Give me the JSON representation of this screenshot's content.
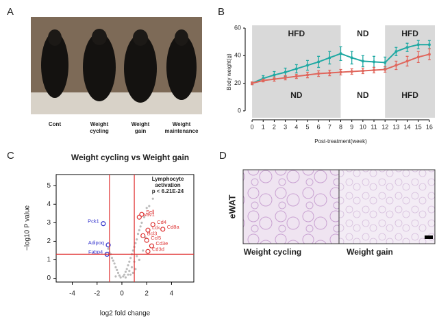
{
  "panels": [
    "A",
    "B",
    "C",
    "D"
  ],
  "photo": {
    "labels": [
      [
        "Cont"
      ],
      [
        "Weight",
        "cycling"
      ],
      [
        "Weight",
        "gain"
      ],
      [
        "Weight",
        "maintenance"
      ]
    ]
  },
  "histology": {
    "tissue": "eWAT",
    "labels": [
      "Weight cycling",
      "Weight gain"
    ]
  },
  "chart_data": [
    {
      "type": "line",
      "ylabel": "Body weight(g)",
      "xlabel": "Post-treatment(week)",
      "x": [
        0,
        1,
        2,
        3,
        4,
        5,
        6,
        7,
        8,
        9,
        10,
        11,
        12,
        13,
        14,
        15,
        16
      ],
      "xlim": [
        -0.5,
        16.5
      ],
      "xticks": [
        0,
        1,
        2,
        3,
        4,
        5,
        6,
        7,
        8,
        9,
        10,
        11,
        12,
        13,
        14,
        15,
        16
      ],
      "ylim": [
        -5,
        62
      ],
      "yticks": [
        0,
        20,
        40,
        60
      ],
      "phases": [
        {
          "start": 0,
          "end": 8,
          "top": "HFD",
          "bottom": "ND",
          "shaded": true
        },
        {
          "start": 8,
          "end": 12,
          "top": "ND",
          "bottom": "ND",
          "shaded": false
        },
        {
          "start": 12,
          "end": 16.5,
          "top": "HFD",
          "bottom": "HFD",
          "shaded": true
        }
      ],
      "series": [
        {
          "color": "#1fa9a3",
          "values": [
            20,
            23.5,
            26,
            28,
            30.5,
            33,
            35.5,
            38.5,
            41.5,
            38.5,
            36,
            35.5,
            35,
            43,
            46,
            48,
            48
          ],
          "errors": [
            1,
            2,
            2.5,
            3,
            3,
            3.5,
            4,
            4.5,
            5,
            4.5,
            4,
            4,
            4,
            3,
            3,
            3,
            3
          ]
        },
        {
          "color": "#e0665c",
          "values": [
            20,
            22,
            23,
            24,
            25,
            26,
            27,
            27.5,
            28,
            28.5,
            29,
            29.5,
            30,
            33,
            36,
            39,
            41
          ],
          "errors": [
            1,
            1,
            1.5,
            1.5,
            1.5,
            2,
            2,
            2,
            2,
            2,
            2,
            2,
            2,
            3,
            3.5,
            4,
            4
          ]
        }
      ]
    },
    {
      "type": "scatter",
      "title": "Weight cycling vs Weight gain",
      "xlabel": "log2 fold change",
      "ylabel": "−log10 P value",
      "xlim": [
        -5.3,
        5.8
      ],
      "xticks": [
        -4,
        -2,
        0,
        2,
        4
      ],
      "ylim": [
        -0.2,
        5.6
      ],
      "yticks": [
        0,
        1,
        2,
        3,
        4,
        5
      ],
      "thresholds": {
        "x": [
          -1,
          1
        ],
        "y": 1.3
      },
      "threshold_color": "#e03030",
      "annotation": [
        "Lymphocyte",
        "activation",
        "p < 6.21E-24"
      ],
      "series": [
        {
          "color": "#bbbbbb",
          "x": [
            -0.1,
            0.1,
            0.2,
            -0.2,
            0.3,
            -0.3,
            0.4,
            -0.4,
            0.5,
            -0.5,
            0.6,
            -0.6,
            0.7,
            -0.7,
            0.8,
            -0.8,
            0.9,
            1.0,
            1.1,
            1.2,
            1.3,
            1.4,
            1.5,
            1.6,
            1.8,
            2.0,
            2.2,
            2.5,
            -0.9,
            -1.0,
            -1.1,
            -1.3,
            0.5,
            0.6,
            0.8,
            1.0,
            1.2,
            0.9,
            1.1,
            1.4,
            1.7,
            -0.5,
            0.3,
            0.7,
            1.9
          ],
          "y": [
            0.05,
            0.1,
            0.2,
            0.15,
            0.35,
            0.3,
            0.5,
            0.45,
            0.7,
            0.6,
            0.9,
            0.8,
            1.1,
            0.95,
            1.3,
            1.1,
            1.5,
            1.7,
            1.9,
            2.1,
            2.4,
            2.6,
            2.8,
            3.0,
            3.3,
            3.8,
            3.9,
            4.3,
            1.3,
            1.4,
            1.6,
            1.3,
            0.2,
            0.4,
            0.6,
            0.9,
            1.2,
            0.3,
            0.5,
            1.0,
            1.5,
            0.1,
            0.05,
            0.2,
            2.2
          ]
        },
        {
          "color": "#3333cc",
          "labels": [
            "Pck1",
            "Adipoq",
            "Fabp4"
          ],
          "x": [
            -1.5,
            -1.1,
            -1.2
          ],
          "y": [
            2.95,
            1.8,
            1.3
          ]
        },
        {
          "color": "#dd3333",
          "labels": [
            "Sell",
            "Vav1",
            "Cd4",
            "Cd8a",
            "Lck",
            "Bcl3",
            "Ccl5",
            "Cd3e",
            "Cd3d"
          ],
          "x": [
            1.6,
            1.4,
            2.5,
            3.3,
            2.1,
            1.7,
            2.0,
            2.4,
            2.1
          ],
          "y": [
            3.45,
            3.3,
            2.9,
            2.65,
            2.6,
            2.3,
            2.05,
            1.75,
            1.45
          ]
        }
      ]
    }
  ]
}
